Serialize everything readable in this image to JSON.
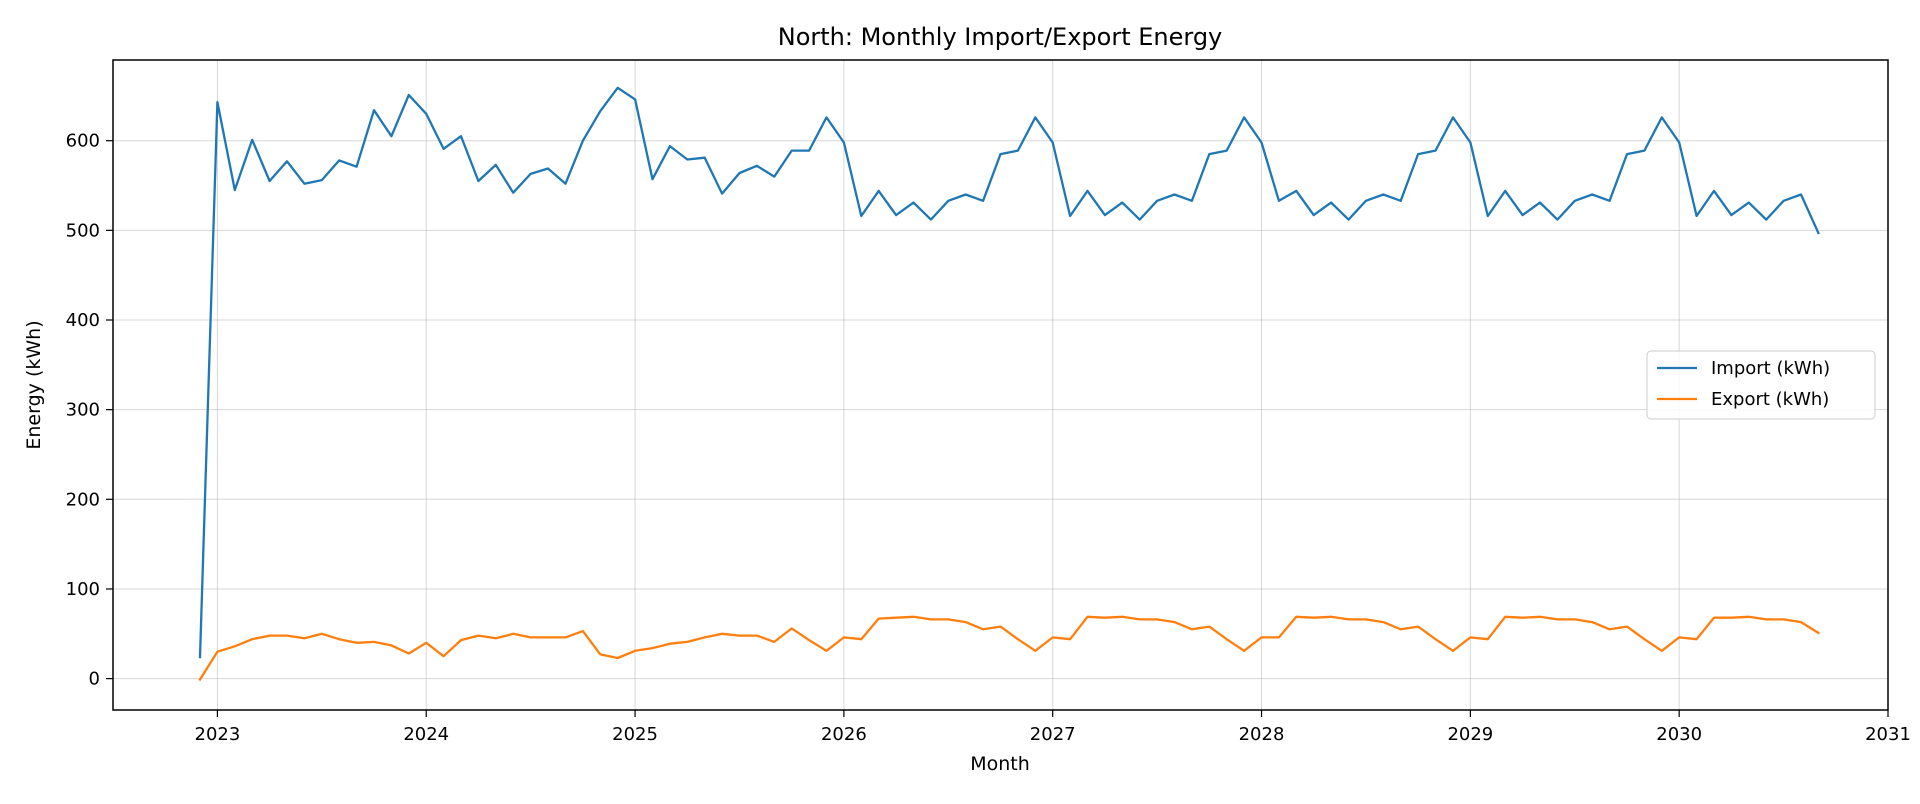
{
  "chart_data": {
    "type": "line",
    "title": "North: Monthly Import/Export Energy",
    "xlabel": "Month",
    "ylabel": "Energy (kWh)",
    "xlim": [
      "2022-07",
      "2031-01"
    ],
    "ylim": [
      -35,
      690
    ],
    "x_ticks": [
      "2023",
      "2024",
      "2025",
      "2026",
      "2027",
      "2028",
      "2029",
      "2030",
      "2031"
    ],
    "y_ticks": [
      0,
      100,
      200,
      300,
      400,
      500,
      600
    ],
    "grid": true,
    "legend_position": "center-right",
    "x": [
      "2022-12",
      "2023-01",
      "2023-02",
      "2023-03",
      "2023-04",
      "2023-05",
      "2023-06",
      "2023-07",
      "2023-08",
      "2023-09",
      "2023-10",
      "2023-11",
      "2023-12",
      "2024-01",
      "2024-02",
      "2024-03",
      "2024-04",
      "2024-05",
      "2024-06",
      "2024-07",
      "2024-08",
      "2024-09",
      "2024-10",
      "2024-11",
      "2024-12",
      "2025-01",
      "2025-02",
      "2025-03",
      "2025-04",
      "2025-05",
      "2025-06",
      "2025-07",
      "2025-08",
      "2025-09",
      "2025-10",
      "2025-11",
      "2025-12",
      "2026-01",
      "2026-02",
      "2026-03",
      "2026-04",
      "2026-05",
      "2026-06",
      "2026-07",
      "2026-08",
      "2026-09",
      "2026-10",
      "2026-11",
      "2026-12",
      "2027-01",
      "2027-02",
      "2027-03",
      "2027-04",
      "2027-05",
      "2027-06",
      "2027-07",
      "2027-08",
      "2027-09",
      "2027-10",
      "2027-11",
      "2027-12",
      "2028-01",
      "2028-02",
      "2028-03",
      "2028-04",
      "2028-05",
      "2028-06",
      "2028-07",
      "2028-08",
      "2028-09",
      "2028-10",
      "2028-11",
      "2028-12",
      "2029-01",
      "2029-02",
      "2029-03",
      "2029-04",
      "2029-05",
      "2029-06",
      "2029-07",
      "2029-08",
      "2029-09",
      "2029-10",
      "2029-11",
      "2029-12",
      "2030-01",
      "2030-02",
      "2030-03",
      "2030-04",
      "2030-05",
      "2030-06",
      "2030-07",
      "2030-08",
      "2030-09"
    ],
    "series": [
      {
        "name": "Import (kWh)",
        "color": "#1f77b4",
        "values": [
          24,
          643,
          545,
          601,
          555,
          577,
          552,
          556,
          578,
          571,
          634,
          605,
          651,
          630,
          591,
          605,
          555,
          573,
          542,
          563,
          569,
          552,
          600,
          633,
          659,
          646,
          557,
          594,
          579,
          581,
          541,
          564,
          572,
          560,
          589,
          589,
          626,
          598,
          516,
          544,
          517,
          531,
          512,
          533,
          540,
          533,
          585,
          589,
          626,
          598,
          516,
          544,
          517,
          531,
          512,
          533,
          540,
          533,
          585,
          589,
          626,
          598,
          533,
          544,
          517,
          531,
          512,
          533,
          540,
          533,
          585,
          589,
          626,
          598,
          516,
          544,
          517,
          531,
          512,
          533,
          540,
          533,
          585,
          589,
          626,
          598,
          516,
          544,
          517,
          531,
          512,
          533,
          540,
          497
        ]
      },
      {
        "name": "Export (kWh)",
        "color": "#ff7f0e",
        "values": [
          -1,
          30,
          36,
          44,
          48,
          48,
          45,
          50,
          44,
          40,
          41,
          37,
          28,
          40,
          25,
          43,
          48,
          45,
          50,
          46,
          46,
          46,
          53,
          27,
          23,
          31,
          34,
          39,
          41,
          46,
          50,
          48,
          48,
          41,
          56,
          43,
          31,
          46,
          44,
          67,
          68,
          69,
          66,
          66,
          63,
          55,
          58,
          44,
          31,
          46,
          44,
          69,
          68,
          69,
          66,
          66,
          63,
          55,
          58,
          44,
          31,
          46,
          46,
          69,
          68,
          69,
          66,
          66,
          63,
          55,
          58,
          44,
          31,
          46,
          44,
          69,
          68,
          69,
          66,
          66,
          63,
          55,
          58,
          44,
          31,
          46,
          44,
          68,
          68,
          69,
          66,
          66,
          63,
          51
        ]
      }
    ]
  }
}
